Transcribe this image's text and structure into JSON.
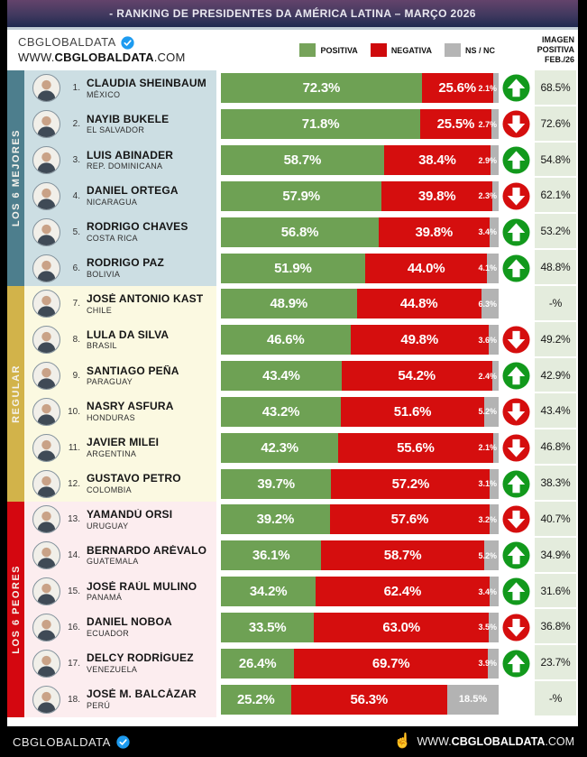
{
  "title_bar": {
    "text": "- RANKING DE PRESIDENTES DA AMÉRICA LATINA – MARÇO 2026"
  },
  "header": {
    "logo": "CBGLOBALDATA",
    "url": {
      "prefix": "WWW.",
      "bold": "CBGLOBALDATA",
      "suffix": ".COM"
    },
    "legend": [
      {
        "label": "POSITIVA",
        "color": "#76a35a"
      },
      {
        "label": "NEGATIVA",
        "color": "#cf0a0c"
      },
      {
        "label": "NS / NC",
        "color": "#b5b5b5"
      }
    ],
    "right_column_header": [
      "IMAGEN",
      "POSITIVA",
      "FEB./26"
    ]
  },
  "colors": {
    "positive": "#6ea154",
    "negative": "#d50e0e",
    "ns_nc": "#b3b3b3",
    "arrow_up": "#12991c",
    "arrow_down": "#d50e0e",
    "right_cell_bg": "#e4ecdd"
  },
  "groups": [
    {
      "label": "LOS 6 MEJORES",
      "sidebar_color": "#4d7e8d",
      "row_bg": "#ccdee3",
      "rows": [
        {
          "rank": "1.",
          "name": "CLAUDIA SHEINBAUM",
          "country": "MÉXICO",
          "positive": 72.3,
          "negative": 25.6,
          "ns_nc": 2.1,
          "trend": "up",
          "prev_positive": "68.5%"
        },
        {
          "rank": "2.",
          "name": "NAYIB BUKELE",
          "country": "EL SALVADOR",
          "positive": 71.8,
          "negative": 25.5,
          "ns_nc": 2.7,
          "trend": "down",
          "prev_positive": "72.6%"
        },
        {
          "rank": "3.",
          "name": "LUIS ABINADER",
          "country": "REP. DOMINICANA",
          "positive": 58.7,
          "negative": 38.4,
          "ns_nc": 2.9,
          "trend": "up",
          "prev_positive": "54.8%"
        },
        {
          "rank": "4.",
          "name": "DANIEL ORTEGA",
          "country": "NICARAGUA",
          "positive": 57.9,
          "negative": 39.8,
          "ns_nc": 2.3,
          "trend": "down",
          "prev_positive": "62.1%"
        },
        {
          "rank": "5.",
          "name": "RODRIGO CHAVES",
          "country": "COSTA RICA",
          "positive": 56.8,
          "negative": 39.8,
          "ns_nc": 3.4,
          "trend": "up",
          "prev_positive": "53.2%"
        },
        {
          "rank": "6.",
          "name": "RODRIGO PAZ",
          "country": "BOLIVIA",
          "positive": 51.9,
          "negative": 44.0,
          "ns_nc": 4.1,
          "trend": "up",
          "prev_positive": "48.8%"
        }
      ]
    },
    {
      "label": "REGULAR",
      "sidebar_color": "#d2b34a",
      "row_bg": "#fbf9e1",
      "rows": [
        {
          "rank": "7.",
          "name": "JOSÉ ANTONIO KAST",
          "country": "CHILE",
          "positive": 48.9,
          "negative": 44.8,
          "ns_nc": 6.3,
          "trend": null,
          "prev_positive": "-%"
        },
        {
          "rank": "8.",
          "name": "LULA DA SILVA",
          "country": "BRASIL",
          "positive": 46.6,
          "negative": 49.8,
          "ns_nc": 3.6,
          "trend": "down",
          "prev_positive": "49.2%"
        },
        {
          "rank": "9.",
          "name": "SANTIAGO PEÑA",
          "country": "PARAGUAY",
          "positive": 43.4,
          "negative": 54.2,
          "ns_nc": 2.4,
          "trend": "up",
          "prev_positive": "42.9%"
        },
        {
          "rank": "10.",
          "name": "NASRY ASFURA",
          "country": "HONDURAS",
          "positive": 43.2,
          "negative": 51.6,
          "ns_nc": 5.2,
          "trend": "down",
          "prev_positive": "43.4%"
        },
        {
          "rank": "11.",
          "name": "JAVIER MILEI",
          "country": "ARGENTINA",
          "positive": 42.3,
          "negative": 55.6,
          "ns_nc": 2.1,
          "trend": "down",
          "prev_positive": "46.8%"
        },
        {
          "rank": "12.",
          "name": "GUSTAVO PETRO",
          "country": "COLOMBIA",
          "positive": 39.7,
          "negative": 57.2,
          "ns_nc": 3.1,
          "trend": "up",
          "prev_positive": "38.3%"
        }
      ]
    },
    {
      "label": "LOS 6 PEORES",
      "sidebar_color": "#d40710",
      "row_bg": "#fcedef",
      "rows": [
        {
          "rank": "13.",
          "name": "YAMANDÚ ORSI",
          "country": "URUGUAY",
          "positive": 39.2,
          "negative": 57.6,
          "ns_nc": 3.2,
          "trend": "down",
          "prev_positive": "40.7%"
        },
        {
          "rank": "14.",
          "name": "BERNARDO ARÉVALO",
          "country": "GUATEMALA",
          "positive": 36.1,
          "negative": 58.7,
          "ns_nc": 5.2,
          "trend": "up",
          "prev_positive": "34.9%"
        },
        {
          "rank": "15.",
          "name": "JOSÉ RAÚL MULINO",
          "country": "PANAMÁ",
          "positive": 34.2,
          "negative": 62.4,
          "ns_nc": 3.4,
          "trend": "up",
          "prev_positive": "31.6%"
        },
        {
          "rank": "16.",
          "name": "DANIEL NOBOA",
          "country": "ECUADOR",
          "positive": 33.5,
          "negative": 63.0,
          "ns_nc": 3.5,
          "trend": "down",
          "prev_positive": "36.8%"
        },
        {
          "rank": "17.",
          "name": "DELCY RODRÍGUEZ",
          "country": "VENEZUELA",
          "positive": 26.4,
          "negative": 69.7,
          "ns_nc": 3.9,
          "trend": "up",
          "prev_positive": "23.7%"
        },
        {
          "rank": "18.",
          "name": "JOSÉ M. BALCÁZAR",
          "country": "PERÚ",
          "positive": 25.2,
          "negative": 56.3,
          "ns_nc": 18.5,
          "trend": null,
          "prev_positive": "-%"
        }
      ]
    }
  ],
  "footer": {
    "logo": "CBGLOBALDATA",
    "url": {
      "prefix": "WWW.",
      "bold": "CBGLOBALDATA",
      "suffix": ".COM"
    }
  },
  "chart_data": {
    "type": "bar",
    "stacked": true,
    "orientation": "horizontal",
    "title": "- RANKING DE PRESIDENTES DA AMÉRICA LATINA – MARÇO 2026",
    "legend_position": "top",
    "xlim": [
      0,
      100
    ],
    "categories": [
      "CLAUDIA SHEINBAUM",
      "NAYIB BUKELE",
      "LUIS ABINADER",
      "DANIEL ORTEGA",
      "RODRIGO CHAVES",
      "RODRIGO PAZ",
      "JOSÉ ANTONIO KAST",
      "LULA DA SILVA",
      "SANTIAGO PEÑA",
      "NASRY ASFURA",
      "JAVIER MILEI",
      "GUSTAVO PETRO",
      "YAMANDÚ ORSI",
      "BERNARDO ARÉVALO",
      "JOSÉ RAÚL MULINO",
      "DANIEL NOBOA",
      "DELCY RODRÍGUEZ",
      "JOSÉ M. BALCÁZAR"
    ],
    "countries": [
      "MÉXICO",
      "EL SALVADOR",
      "REP. DOMINICANA",
      "NICARAGUA",
      "COSTA RICA",
      "BOLIVIA",
      "CHILE",
      "BRASIL",
      "PARAGUAY",
      "HONDURAS",
      "ARGENTINA",
      "COLOMBIA",
      "URUGUAY",
      "GUATEMALA",
      "PANAMÁ",
      "ECUADOR",
      "VENEZUELA",
      "PERÚ"
    ],
    "series": [
      {
        "name": "POSITIVA",
        "values": [
          72.3,
          71.8,
          58.7,
          57.9,
          56.8,
          51.9,
          48.9,
          46.6,
          43.4,
          43.2,
          42.3,
          39.7,
          39.2,
          36.1,
          34.2,
          33.5,
          26.4,
          25.2
        ]
      },
      {
        "name": "NEGATIVA",
        "values": [
          25.6,
          25.5,
          38.4,
          39.8,
          39.8,
          44.0,
          44.8,
          49.8,
          54.2,
          51.6,
          55.6,
          57.2,
          57.6,
          58.7,
          62.4,
          63.0,
          69.7,
          56.3
        ]
      },
      {
        "name": "NS / NC",
        "values": [
          2.1,
          2.7,
          2.9,
          2.3,
          3.4,
          4.1,
          6.3,
          3.6,
          2.4,
          5.2,
          2.1,
          3.1,
          3.2,
          5.2,
          3.4,
          3.5,
          3.9,
          18.5
        ]
      }
    ],
    "imagen_positiva_feb26": [
      "68.5%",
      "72.6%",
      "54.8%",
      "62.1%",
      "53.2%",
      "48.8%",
      "-%",
      "49.2%",
      "42.9%",
      "43.4%",
      "46.8%",
      "38.3%",
      "40.7%",
      "34.9%",
      "31.6%",
      "36.8%",
      "23.7%",
      "-%"
    ],
    "trend": [
      "up",
      "down",
      "up",
      "down",
      "up",
      "up",
      null,
      "down",
      "up",
      "down",
      "down",
      "up",
      "down",
      "up",
      "up",
      "down",
      "up",
      null
    ],
    "row_groups": [
      "LOS 6 MEJORES",
      "LOS 6 MEJORES",
      "LOS 6 MEJORES",
      "LOS 6 MEJORES",
      "LOS 6 MEJORES",
      "LOS 6 MEJORES",
      "REGULAR",
      "REGULAR",
      "REGULAR",
      "REGULAR",
      "REGULAR",
      "REGULAR",
      "LOS 6 PEORES",
      "LOS 6 PEORES",
      "LOS 6 PEORES",
      "LOS 6 PEORES",
      "LOS 6 PEORES",
      "LOS 6 PEORES"
    ]
  }
}
